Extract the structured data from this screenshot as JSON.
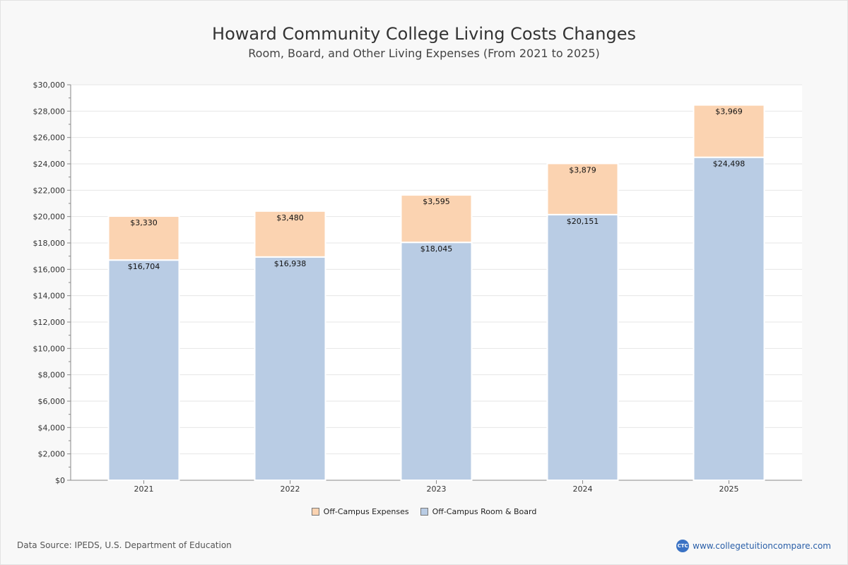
{
  "title": "Howard Community College Living Costs Changes",
  "subtitle": "Room, Board, and Other Living Expenses (From 2021 to 2025)",
  "source": "Data Source: IPEDS, U.S. Department of Education",
  "brand": {
    "logo_text": "CTC",
    "url": "www.collegetuitioncompare.com"
  },
  "colors": {
    "expenses": "#fbd3b1",
    "room_board": "#b9cce4",
    "grid": "#e6e6e6",
    "axis": "#888888"
  },
  "chart_data": {
    "type": "bar",
    "stacked": true,
    "categories": [
      "2021",
      "2022",
      "2023",
      "2024",
      "2025"
    ],
    "series": [
      {
        "name": "Off-Campus Room & Board",
        "values": [
          16704,
          16938,
          18045,
          20151,
          24498
        ],
        "labels": [
          "$16,704",
          "$16,938",
          "$18,045",
          "$20,151",
          "$24,498"
        ],
        "color": "#b9cce4"
      },
      {
        "name": "Off-Campus Expenses",
        "values": [
          3330,
          3480,
          3595,
          3879,
          3969
        ],
        "labels": [
          "$3,330",
          "$3,480",
          "$3,595",
          "$3,879",
          "$3,969"
        ],
        "color": "#fbd3b1"
      }
    ],
    "ylim": [
      0,
      30000
    ],
    "yticks": [
      0,
      2000,
      4000,
      6000,
      8000,
      10000,
      12000,
      14000,
      16000,
      18000,
      20000,
      22000,
      24000,
      26000,
      28000,
      30000
    ],
    "ytick_labels": [
      "$0",
      "$2,000",
      "$4,000",
      "$6,000",
      "$8,000",
      "$10,000",
      "$12,000",
      "$14,000",
      "$16,000",
      "$18,000",
      "$20,000",
      "$22,000",
      "$24,000",
      "$26,000",
      "$28,000",
      "$30,000"
    ],
    "grid": true,
    "legend": {
      "placement": "bottom-center",
      "order": [
        "Off-Campus Expenses",
        "Off-Campus Room & Board"
      ]
    }
  }
}
